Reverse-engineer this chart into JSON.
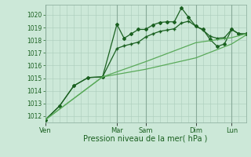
{
  "title": "",
  "xlabel": "Pression niveau de la mer( hPa )",
  "ylabel": "",
  "bg_color": "#cce8d8",
  "grid_color": "#aaccbb",
  "grid_major_color": "#88aa99",
  "line_color_dark": "#1a6020",
  "line_color_light": "#5aaa5a",
  "ylim": [
    1011.5,
    1020.8
  ],
  "yticks": [
    1012,
    1013,
    1014,
    1015,
    1016,
    1017,
    1018,
    1019,
    1020
  ],
  "xlim": [
    0,
    84
  ],
  "day_labels": [
    "Ven",
    "Mar",
    "Sam",
    "Dim",
    "Lun"
  ],
  "day_x": [
    0,
    30,
    42,
    63,
    78
  ],
  "minor_grid_step": 3,
  "series": [
    {
      "x": [
        0,
        6,
        12,
        18,
        24,
        30,
        33,
        36,
        39,
        42,
        45,
        48,
        51,
        54,
        57,
        60,
        63,
        66,
        69,
        72,
        75,
        78,
        81,
        84
      ],
      "y": [
        1011.7,
        1012.8,
        1014.4,
        1015.05,
        1015.1,
        1019.25,
        1018.15,
        1018.5,
        1018.85,
        1018.85,
        1019.2,
        1019.4,
        1019.45,
        1019.45,
        1020.55,
        1019.8,
        1019.1,
        1018.85,
        1018.05,
        1017.5,
        1017.7,
        1018.85,
        1018.5,
        1018.5
      ],
      "color": "#1a6020",
      "marker": "D",
      "markersize": 2.0,
      "linewidth": 0.9,
      "markevery": [
        2,
        4,
        6,
        8,
        10,
        12,
        14,
        16,
        18,
        20,
        22
      ]
    },
    {
      "x": [
        0,
        6,
        12,
        18,
        24,
        30,
        33,
        36,
        39,
        42,
        45,
        48,
        51,
        54,
        57,
        60,
        63,
        66,
        69,
        72,
        75,
        78,
        81,
        84
      ],
      "y": [
        1011.7,
        1012.8,
        1014.4,
        1015.05,
        1015.1,
        1017.35,
        1017.55,
        1017.7,
        1017.85,
        1018.25,
        1018.5,
        1018.7,
        1018.8,
        1018.9,
        1019.35,
        1019.5,
        1019.1,
        1018.8,
        1018.3,
        1018.15,
        1018.2,
        1018.85,
        1018.5,
        1018.5
      ],
      "color": "#1a6020",
      "marker": "P",
      "markersize": 2.5,
      "linewidth": 0.9,
      "markevery": [
        2,
        4,
        6,
        8,
        10,
        12,
        14,
        16,
        18,
        20,
        22
      ]
    },
    {
      "x": [
        0,
        24,
        42,
        63,
        78,
        84
      ],
      "y": [
        1011.7,
        1015.1,
        1016.3,
        1017.8,
        1018.2,
        1018.5
      ],
      "color": "#5aaa5a",
      "marker": null,
      "markersize": 0,
      "linewidth": 0.9
    },
    {
      "x": [
        0,
        24,
        42,
        63,
        78,
        84
      ],
      "y": [
        1011.7,
        1015.1,
        1015.7,
        1016.6,
        1017.7,
        1018.4
      ],
      "color": "#5aaa5a",
      "marker": null,
      "markersize": 0,
      "linewidth": 0.9
    }
  ]
}
